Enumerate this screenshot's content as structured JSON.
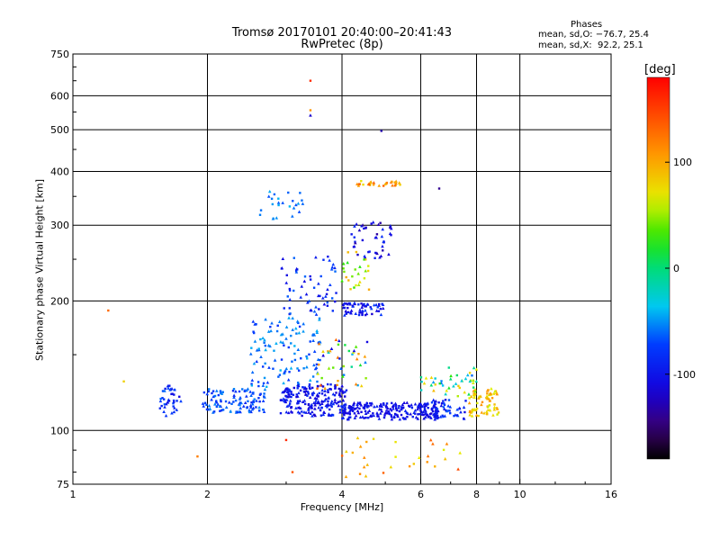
{
  "chart_data": {
    "type": "scatter",
    "title": "Tromsø 20170101 20:40:00–20:41:43",
    "subtitle": "RwPretec (8p)",
    "xlabel": "Frequency [MHz]",
    "ylabel": "Stationary phase Virtual Height [km]",
    "x_scale": "log",
    "y_scale": "log",
    "xlim": [
      1,
      16
    ],
    "ylim": [
      75,
      750
    ],
    "x_ticks": [
      1,
      2,
      4,
      6,
      8,
      10,
      16
    ],
    "x_tick_labels": [
      "1",
      "2",
      "4",
      "6",
      "8",
      "10",
      "16"
    ],
    "y_ticks": [
      75,
      100,
      200,
      300,
      400,
      500,
      600,
      750
    ],
    "y_tick_labels": [
      "75",
      "100",
      "200",
      "300",
      "400",
      "500",
      "600",
      "750"
    ],
    "grid": true,
    "legend_title": "Phases",
    "legend_lines": [
      "mean, sd,O: −76.7, 25.4",
      "mean, sd,X:  92.2, 25.1"
    ],
    "colorbar": {
      "label": "[deg]",
      "range": [
        -180,
        180
      ],
      "ticks": [
        100,
        0,
        -100
      ],
      "tick_labels": [
        "100",
        "0",
        "-100"
      ]
    },
    "clusters": [
      {
        "x": [
          1.55,
          1.75
        ],
        "y": [
          108,
          128
        ],
        "phase": [
          -110,
          -60
        ],
        "n": 40
      },
      {
        "x": [
          1.95,
          2.7
        ],
        "y": [
          110,
          125
        ],
        "phase": [
          -90,
          -50
        ],
        "n": 110
      },
      {
        "x": [
          2.5,
          3.6
        ],
        "y": [
          125,
          185
        ],
        "phase": [
          -80,
          -40
        ],
        "n": 120
      },
      {
        "x": [
          2.9,
          3.9
        ],
        "y": [
          185,
          255
        ],
        "phase": [
          -110,
          -60
        ],
        "n": 60
      },
      {
        "x": [
          2.9,
          4.1
        ],
        "y": [
          108,
          128
        ],
        "phase": [
          -120,
          -80
        ],
        "n": 200
      },
      {
        "x": [
          4.0,
          6.6
        ],
        "y": [
          106,
          116
        ],
        "phase": [
          -120,
          -90
        ],
        "n": 220
      },
      {
        "x": [
          4.0,
          5.0
        ],
        "y": [
          185,
          198
        ],
        "phase": [
          -120,
          -70
        ],
        "n": 60
      },
      {
        "x": [
          4.2,
          5.2
        ],
        "y": [
          250,
          305
        ],
        "phase": [
          -140,
          -80
        ],
        "n": 45
      },
      {
        "x": [
          4.0,
          4.6
        ],
        "y": [
          210,
          260
        ],
        "phase": [
          20,
          100
        ],
        "n": 25
      },
      {
        "x": [
          4.3,
          5.4
        ],
        "y": [
          370,
          382
        ],
        "phase": [
          60,
          140
        ],
        "n": 30
      },
      {
        "x": [
          6.3,
          7.6
        ],
        "y": [
          106,
          118
        ],
        "phase": [
          -110,
          -60
        ],
        "n": 50
      },
      {
        "x": [
          7.7,
          9.0
        ],
        "y": [
          108,
          125
        ],
        "phase": [
          60,
          110
        ],
        "n": 70
      },
      {
        "x": [
          6.0,
          8.0
        ],
        "y": [
          120,
          140
        ],
        "phase": [
          -60,
          100
        ],
        "n": 45
      },
      {
        "x": [
          4.0,
          7.5
        ],
        "y": [
          78,
          98
        ],
        "phase": [
          60,
          150
        ],
        "n": 30
      },
      {
        "x": [
          2.6,
          3.3
        ],
        "y": [
          305,
          360
        ],
        "phase": [
          -70,
          -40
        ],
        "n": 25
      },
      {
        "x": [
          3.5,
          4.6
        ],
        "y": [
          125,
          165
        ],
        "phase": [
          -120,
          140
        ],
        "n": 45
      }
    ],
    "outliers": [
      {
        "x": 1.2,
        "y": 190,
        "phase": 130
      },
      {
        "x": 1.3,
        "y": 130,
        "phase": 80
      },
      {
        "x": 3.4,
        "y": 650,
        "phase": 160
      },
      {
        "x": 3.4,
        "y": 555,
        "phase": 110
      },
      {
        "x": 3.4,
        "y": 540,
        "phase": -120
      },
      {
        "x": 4.9,
        "y": 497,
        "phase": -130
      },
      {
        "x": 6.6,
        "y": 365,
        "phase": -140
      },
      {
        "x": 1.9,
        "y": 87,
        "phase": 120
      },
      {
        "x": 3.0,
        "y": 95,
        "phase": 160
      },
      {
        "x": 3.1,
        "y": 80,
        "phase": 140
      }
    ]
  }
}
